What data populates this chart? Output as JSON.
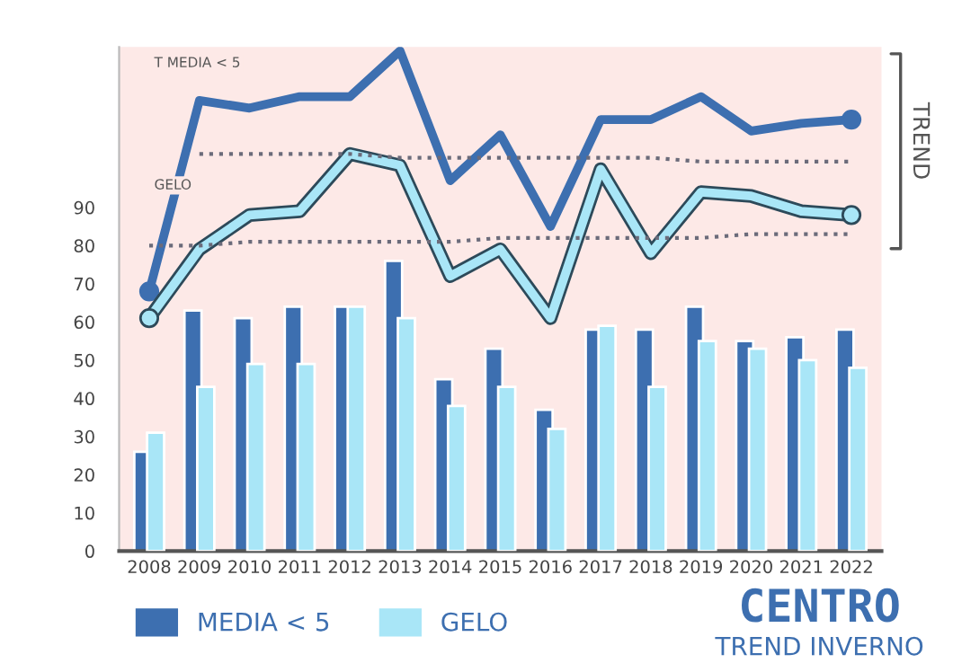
{
  "chart_data": {
    "type": "bar",
    "title": "CENTRO",
    "subtitle": "TREND INVERNO",
    "categories": [
      "2008",
      "2009",
      "2010",
      "2011",
      "2012",
      "2013",
      "2014",
      "2015",
      "2016",
      "2017",
      "2018",
      "2019",
      "2020",
      "2021",
      "2022"
    ],
    "series": [
      {
        "name": "MEDIA < 5",
        "color": "#3d6fb0",
        "values": [
          26,
          63,
          61,
          64,
          64,
          76,
          45,
          53,
          37,
          58,
          58,
          64,
          55,
          56,
          58
        ]
      },
      {
        "name": "GELO",
        "color": "#a9e6f7",
        "values": [
          31,
          43,
          49,
          49,
          64,
          61,
          38,
          43,
          32,
          59,
          43,
          55,
          53,
          50,
          48
        ]
      },
      {
        "name": "T MEDIA < 5",
        "type": "line",
        "color": "#3d6fb0",
        "values": [
          68,
          118,
          116,
          119,
          119,
          131,
          97,
          109,
          85,
          113,
          113,
          119,
          110,
          112,
          113
        ]
      },
      {
        "name": "GELO",
        "type": "line",
        "color": "#a9e6f7",
        "values": [
          61,
          79,
          88,
          89,
          104,
          101,
          72,
          79,
          61,
          100,
          78,
          94,
          93,
          89,
          88
        ]
      },
      {
        "type": "line",
        "color": "#6b6b7a",
        "line_style": "dotted",
        "values": [
          null,
          104,
          104,
          104,
          104,
          103,
          103,
          103,
          103,
          103,
          103,
          102,
          102,
          102,
          102
        ]
      },
      {
        "type": "line",
        "color": "#6b6b7a",
        "line_style": "dotted",
        "values": [
          80,
          80,
          81,
          81,
          81,
          81,
          81,
          82,
          82,
          82,
          82,
          82,
          83,
          83,
          83
        ]
      }
    ],
    "ylim": [
      0,
      132
    ],
    "yticks": [
      0,
      10,
      20,
      30,
      40,
      50,
      60,
      70,
      80,
      90
    ],
    "annotations": [
      "TREND"
    ],
    "legend": "bottom"
  }
}
